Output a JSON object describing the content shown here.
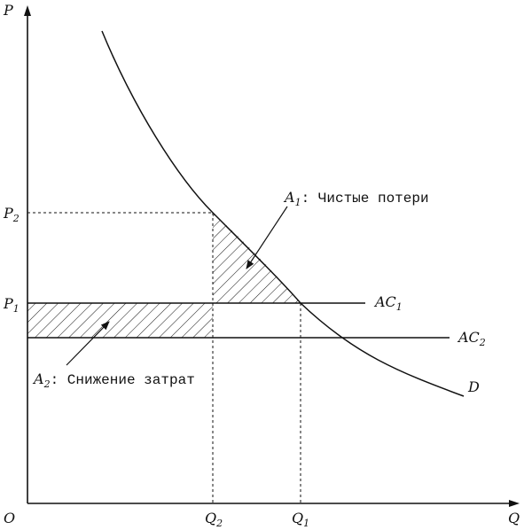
{
  "axes": {
    "y_label": "P",
    "x_label": "Q",
    "origin_label": "O"
  },
  "prices": {
    "p1": {
      "main": "P",
      "sub": "1"
    },
    "p2": {
      "main": "P",
      "sub": "2"
    }
  },
  "quantities": {
    "q1": {
      "main": "Q",
      "sub": "1"
    },
    "q2": {
      "main": "Q",
      "sub": "2"
    }
  },
  "curves": {
    "ac1": {
      "main": "AC",
      "sub": "1"
    },
    "ac2": {
      "main": "AC",
      "sub": "2"
    },
    "demand": "D"
  },
  "annotations": {
    "a1": {
      "main": "A",
      "sub": "1",
      "text": ": Чистые потери"
    },
    "a2": {
      "main": "A",
      "sub": "2",
      "text": ": Снижение затрат"
    }
  }
}
